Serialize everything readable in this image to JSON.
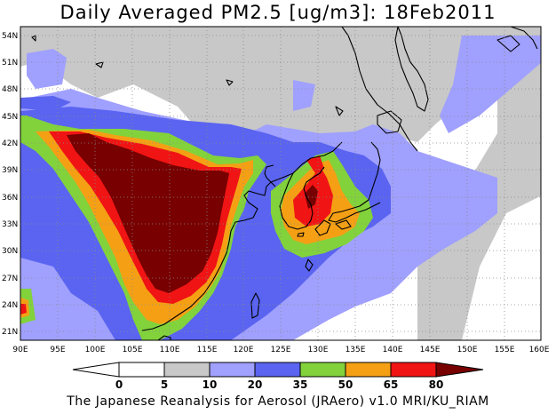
{
  "title": "Daily Averaged PM2.5 [ug/m3]: 18Feb2011",
  "footer": "The Japanese Reanalysis for Aerosol (JRAero) v1.0 MRI/KU_RIAM",
  "map": {
    "lon_range": [
      90,
      160
    ],
    "lat_range": [
      20,
      55
    ],
    "lon_ticks": [
      "90E",
      "95E",
      "100E",
      "105E",
      "110E",
      "115E",
      "120E",
      "125E",
      "130E",
      "135E",
      "140E",
      "145E",
      "150E",
      "155E",
      "160E"
    ],
    "lat_ticks": [
      "54N",
      "51N",
      "48N",
      "45N",
      "42N",
      "39N",
      "36N",
      "33N",
      "30N",
      "27N",
      "24N",
      "21N"
    ],
    "grid": "dotted"
  },
  "colorbar": {
    "labels": [
      "0",
      "5",
      "10",
      "20",
      "35",
      "50",
      "65",
      "80"
    ],
    "colors": [
      "#ffffff",
      "#c8c8c8",
      "#a0a0ff",
      "#5a64f0",
      "#82d23c",
      "#f5a014",
      "#f01414",
      "#780000"
    ]
  }
}
